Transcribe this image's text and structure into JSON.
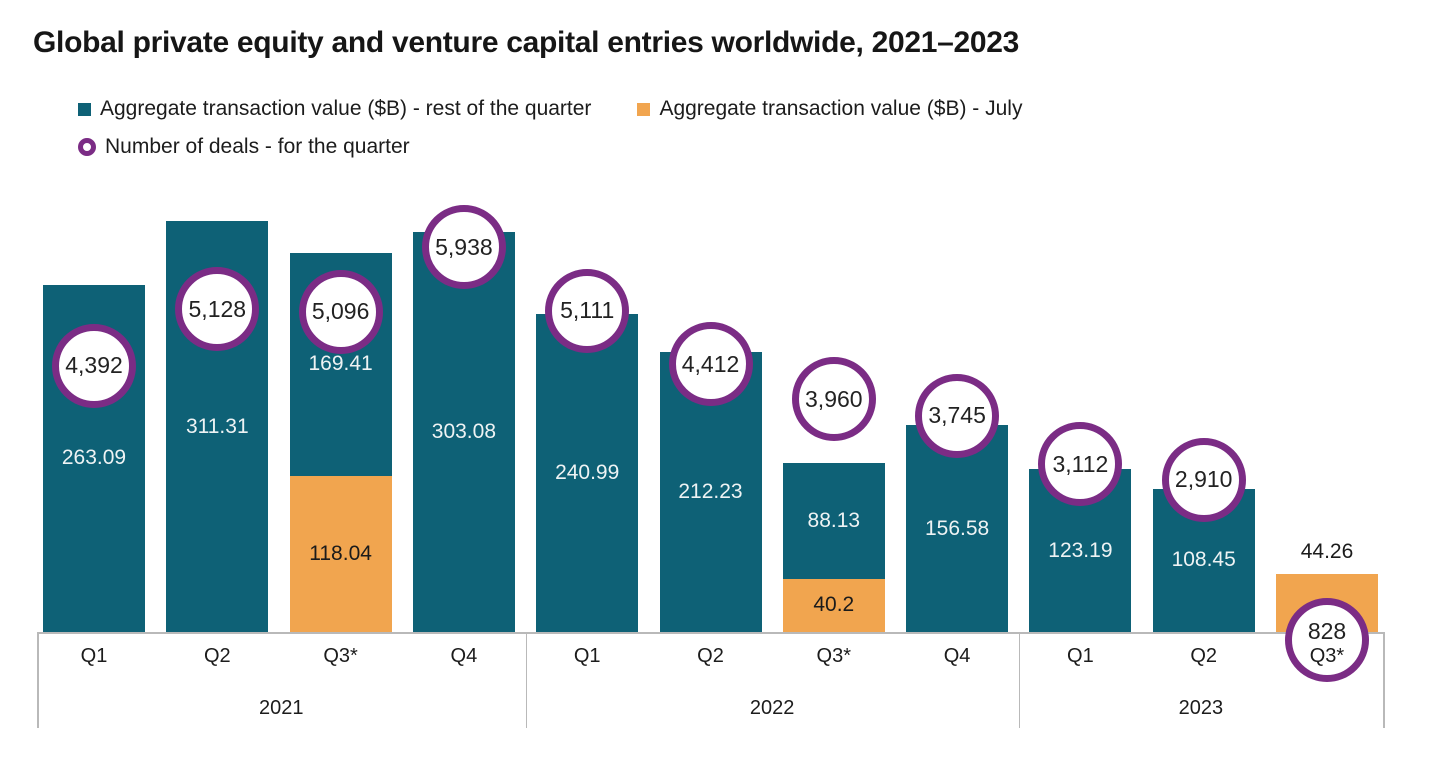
{
  "title": "Global private equity and venture capital entries worldwide, 2021–2023",
  "legend": {
    "rest": "Aggregate transaction value ($B) - rest of the quarter",
    "july": "Aggregate transaction value ($B) - July",
    "deals": "Number of deals - for the quarter"
  },
  "colors": {
    "teal": "#0e6176",
    "orange": "#f1a54f",
    "purple": "#7b2c85",
    "label_on_teal": "#eef3f4",
    "label_dark": "#1b1b1b",
    "axis_line": "#b9b9b9"
  },
  "chart_data": {
    "type": "bar",
    "stacked": true,
    "title": "Global private equity and venture capital entries worldwide, 2021–2023",
    "legend_position": "top-left",
    "grid": false,
    "value_axis": {
      "unit": "$B",
      "min": 0,
      "implied_max": 480
    },
    "secondary_axis": {
      "name": "Number of deals",
      "shown_as": "circle markers"
    },
    "x_groups": [
      {
        "year": "2021",
        "quarters": [
          "Q1",
          "Q2",
          "Q3*",
          "Q4"
        ]
      },
      {
        "year": "2022",
        "quarters": [
          "Q1",
          "Q2",
          "Q3*",
          "Q4"
        ]
      },
      {
        "year": "2023",
        "quarters": [
          "Q1",
          "Q2",
          "Q3*"
        ]
      }
    ],
    "categories": [
      "Q1 2021",
      "Q2 2021",
      "Q3* 2021",
      "Q4 2021",
      "Q1 2022",
      "Q2 2022",
      "Q3* 2022",
      "Q4 2022",
      "Q1 2023",
      "Q2 2023",
      "Q3* 2023"
    ],
    "series": [
      {
        "name": "Aggregate transaction value ($B) - rest of the quarter",
        "color": "#0e6176",
        "values": [
          263.09,
          311.31,
          169.41,
          303.08,
          240.99,
          212.23,
          88.13,
          156.58,
          123.19,
          108.45,
          null
        ]
      },
      {
        "name": "Aggregate transaction value ($B) - July",
        "color": "#f1a54f",
        "values": [
          null,
          null,
          118.04,
          null,
          null,
          null,
          40.2,
          null,
          null,
          null,
          44.26
        ]
      },
      {
        "name": "Number of deals - for the quarter",
        "color": "#7b2c85",
        "values": [
          4392,
          5128,
          5096,
          5938,
          5111,
          4412,
          3960,
          3745,
          3112,
          2910,
          828
        ]
      }
    ]
  }
}
